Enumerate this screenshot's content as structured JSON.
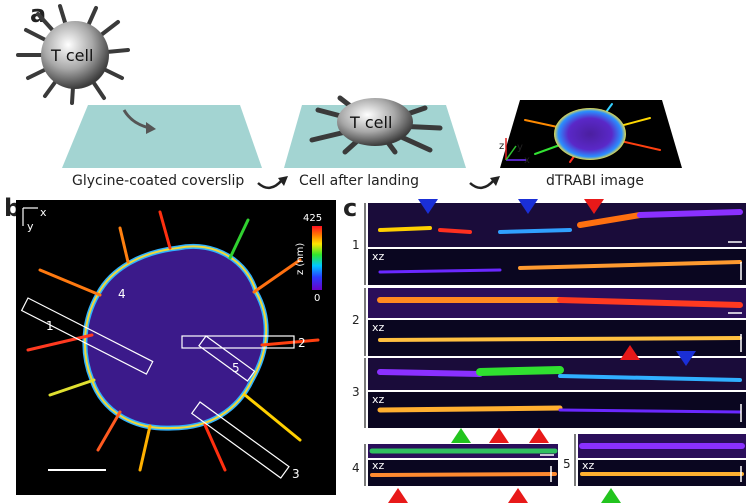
{
  "panel_a": {
    "letter": "a",
    "cell_label_1": "T cell",
    "cell_label_2": "T cell",
    "caption_1": "Glycine-coated coverslip",
    "caption_2": "Cell after landing",
    "caption_3": "dTRABI image",
    "axis_z": "z",
    "axis_y": "y",
    "axis_x": "x"
  },
  "panel_b": {
    "letter": "b",
    "axis_x": "x",
    "axis_y": "y",
    "colorbar_max": "425",
    "colorbar_min": "0",
    "colorbar_label": "z (nm)",
    "roi_labels": [
      "1",
      "2",
      "3",
      "4",
      "5"
    ]
  },
  "panel_c": {
    "letter": "c",
    "row_labels": [
      "1",
      "2",
      "3",
      "4",
      "5"
    ],
    "xz_label": "xz"
  },
  "colors": {
    "coverslip": "#a3d4d2",
    "arrow_blue": "#1a2fd6",
    "arrow_red": "#e81919",
    "arrow_green": "#22c41e",
    "dark_cell": "#3a3a3a"
  }
}
